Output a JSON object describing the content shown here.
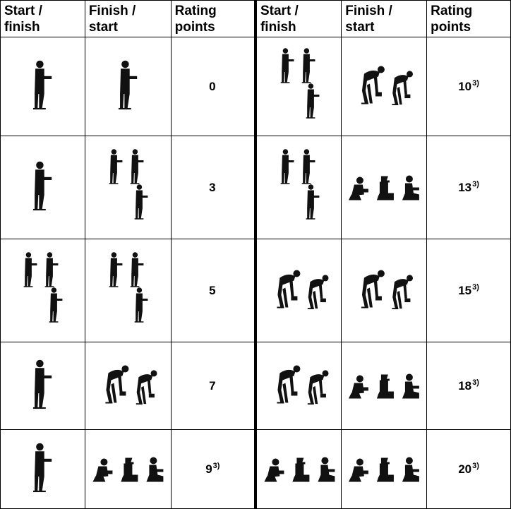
{
  "columns": [
    {
      "line1": "Start /",
      "line2": "finish"
    },
    {
      "line1": "Finish /",
      "line2": "start"
    },
    {
      "line1": "Rating",
      "line2": "points"
    },
    {
      "line1": "Start /",
      "line2": "finish"
    },
    {
      "line1": "Finish /",
      "line2": "start"
    },
    {
      "line1": "Rating",
      "line2": "points"
    }
  ],
  "posture_icons": {
    "standing": "standing-figure-icon",
    "lifting": "lifting-sequence-icon",
    "bending": "bending-figures-icon",
    "kneeling": "crouching-kneeling-figures-icon"
  },
  "rows": [
    {
      "left": {
        "start": "standing",
        "finish": "standing",
        "points": "0",
        "note": ""
      },
      "right": {
        "start": "lifting",
        "finish": "bending",
        "points": "10",
        "note": "3)"
      }
    },
    {
      "left": {
        "start": "standing",
        "finish": "lifting",
        "points": "3",
        "note": ""
      },
      "right": {
        "start": "lifting",
        "finish": "kneeling",
        "points": "13",
        "note": "3)"
      }
    },
    {
      "left": {
        "start": "lifting",
        "finish": "lifting",
        "points": "5",
        "note": ""
      },
      "right": {
        "start": "bending",
        "finish": "bending",
        "points": "15",
        "note": "3)"
      }
    },
    {
      "left": {
        "start": "standing",
        "finish": "bending",
        "points": "7",
        "note": ""
      },
      "right": {
        "start": "bending",
        "finish": "kneeling",
        "points": "18",
        "note": "3)"
      }
    },
    {
      "left": {
        "start": "standing",
        "finish": "kneeling",
        "points": "9",
        "note": "3)"
      },
      "right": {
        "start": "kneeling",
        "finish": "kneeling",
        "points": "20",
        "note": "3)"
      }
    }
  ]
}
